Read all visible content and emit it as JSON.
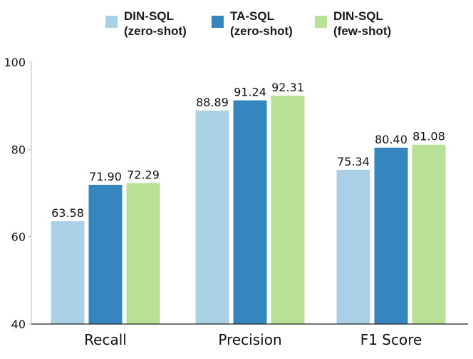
{
  "chart_data": {
    "type": "bar",
    "categories": [
      "Recall",
      "Precision",
      "F1 Score"
    ],
    "series": [
      {
        "name_line1": "DIN-SQL",
        "name_line2": "(zero-shot)",
        "color": "#a9d0e4",
        "values": [
          63.58,
          88.89,
          75.34
        ],
        "labels": [
          "63.58",
          "88.89",
          "75.34"
        ]
      },
      {
        "name_line1": "TA-SQL",
        "name_line2": "(zero-shot)",
        "color": "#3585bf",
        "values": [
          71.9,
          91.24,
          80.4
        ],
        "labels": [
          "71.90",
          "91.24",
          "80.40"
        ]
      },
      {
        "name_line1": "DIN-SQL",
        "name_line2": "(few-shot)",
        "color": "#b9e196",
        "values": [
          72.29,
          92.31,
          81.08
        ],
        "labels": [
          "72.29",
          "92.31",
          "81.08"
        ]
      }
    ],
    "ylim": [
      40,
      100
    ],
    "yticks": [
      "40",
      "60",
      "80",
      "100"
    ],
    "ytick_values": [
      40,
      60,
      80,
      100
    ],
    "grid": false,
    "legend": "top-center",
    "title": "",
    "xlabel": "",
    "ylabel": ""
  }
}
